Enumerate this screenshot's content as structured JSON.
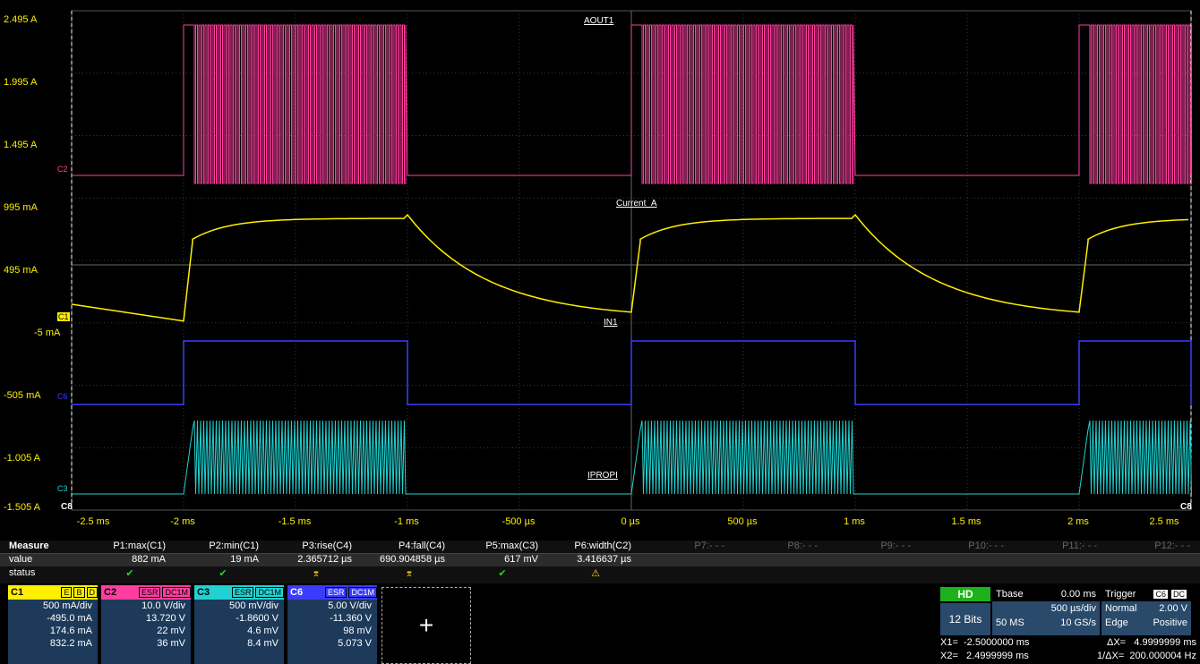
{
  "y_axis_labels": [
    "2.495 A",
    "1.995 A",
    "1.495 A",
    "995 mA",
    "495 mA",
    "-5 mA",
    "-505 mA",
    "-1.005 A",
    "-1.505 A"
  ],
  "x_axis_labels": [
    "-2.5 ms",
    "-2 ms",
    "-1.5 ms",
    "-1 ms",
    "-500 µs",
    "0 µs",
    "500 µs",
    "1 ms",
    "1.5 ms",
    "2 ms",
    "2.5 ms"
  ],
  "trace_labels": {
    "aout1": "AOUT1",
    "current_a": "Current_A",
    "in1": "IN1",
    "ipropi": "IPROPI"
  },
  "channel_markers": {
    "c1": "C1",
    "c2": "C2",
    "c3": "C3",
    "c6": "C6",
    "c8_left": "C8",
    "c8_right": "C8"
  },
  "colors": {
    "c1": "#ffef00",
    "c2": "#ff3fa0",
    "c3": "#22d2d2",
    "c6": "#3c3cff"
  },
  "measure": {
    "title": "Measure",
    "row_value": "value",
    "row_status": "status",
    "params": [
      {
        "name": "P1:max(C1)",
        "value": "882 mA",
        "status": "✔"
      },
      {
        "name": "P2:min(C1)",
        "value": "19 mA",
        "status": "✔"
      },
      {
        "name": "P3:rise(C4)",
        "value": "2.365712 µs",
        "status": "⌆"
      },
      {
        "name": "P4:fall(C4)",
        "value": "690.904858 µs",
        "status": "⌆"
      },
      {
        "name": "P5:max(C3)",
        "value": "617 mV",
        "status": "✔"
      },
      {
        "name": "P6:width(C2)",
        "value": "3.416637 µs",
        "status": "⚠"
      },
      {
        "name": "P7:- - -",
        "value": "",
        "status": ""
      },
      {
        "name": "P8:- - -",
        "value": "",
        "status": ""
      },
      {
        "name": "P9:- - -",
        "value": "",
        "status": ""
      },
      {
        "name": "P10:- - -",
        "value": "",
        "status": ""
      },
      {
        "name": "P11:- - -",
        "value": "",
        "status": ""
      },
      {
        "name": "P12:- - -",
        "value": "",
        "status": ""
      }
    ]
  },
  "channels": [
    {
      "name": "C1",
      "tags": [
        "E",
        "B",
        "D"
      ],
      "line1": "500 mA/div",
      "line2": "-495.0 mA",
      "line3": "174.6 mA",
      "line4": "832.2 mA"
    },
    {
      "name": "C2",
      "tags": [
        "ESR",
        "DC1M"
      ],
      "line1": "10.0 V/div",
      "line2": "13.720 V",
      "line3": "22 mV",
      "line4": "36 mV"
    },
    {
      "name": "C3",
      "tags": [
        "ESR",
        "DC1M"
      ],
      "line1": "500 mV/div",
      "line2": "-1.8600 V",
      "line3": "4.6 mV",
      "line4": "8.4 mV"
    },
    {
      "name": "C6",
      "tags": [
        "ESR",
        "DC1M"
      ],
      "line1": "5.00 V/div",
      "line2": "-11.360 V",
      "line3": "98 mV",
      "line4": "5.073 V"
    }
  ],
  "add_label": "+",
  "hd": "HD",
  "bits": "12 Bits",
  "tbase": {
    "title": "Tbase",
    "offset": "0.00 ms",
    "perdiv": "500 µs/div",
    "samples": "50 MS",
    "rate": "10 GS/s"
  },
  "trigger": {
    "title": "Trigger",
    "tag1": "C6",
    "tag2": "DC",
    "mode": "Normal",
    "level": "2.00 V",
    "type": "Edge",
    "slope": "Positive"
  },
  "cursors": {
    "x1": "X1=  -2.5000000 ms",
    "dx": "ΔX=   4.9999999 ms",
    "x2": "X2=   2.4999999 ms",
    "inv_dx": "1/ΔX=  200.000004 Hz"
  }
}
